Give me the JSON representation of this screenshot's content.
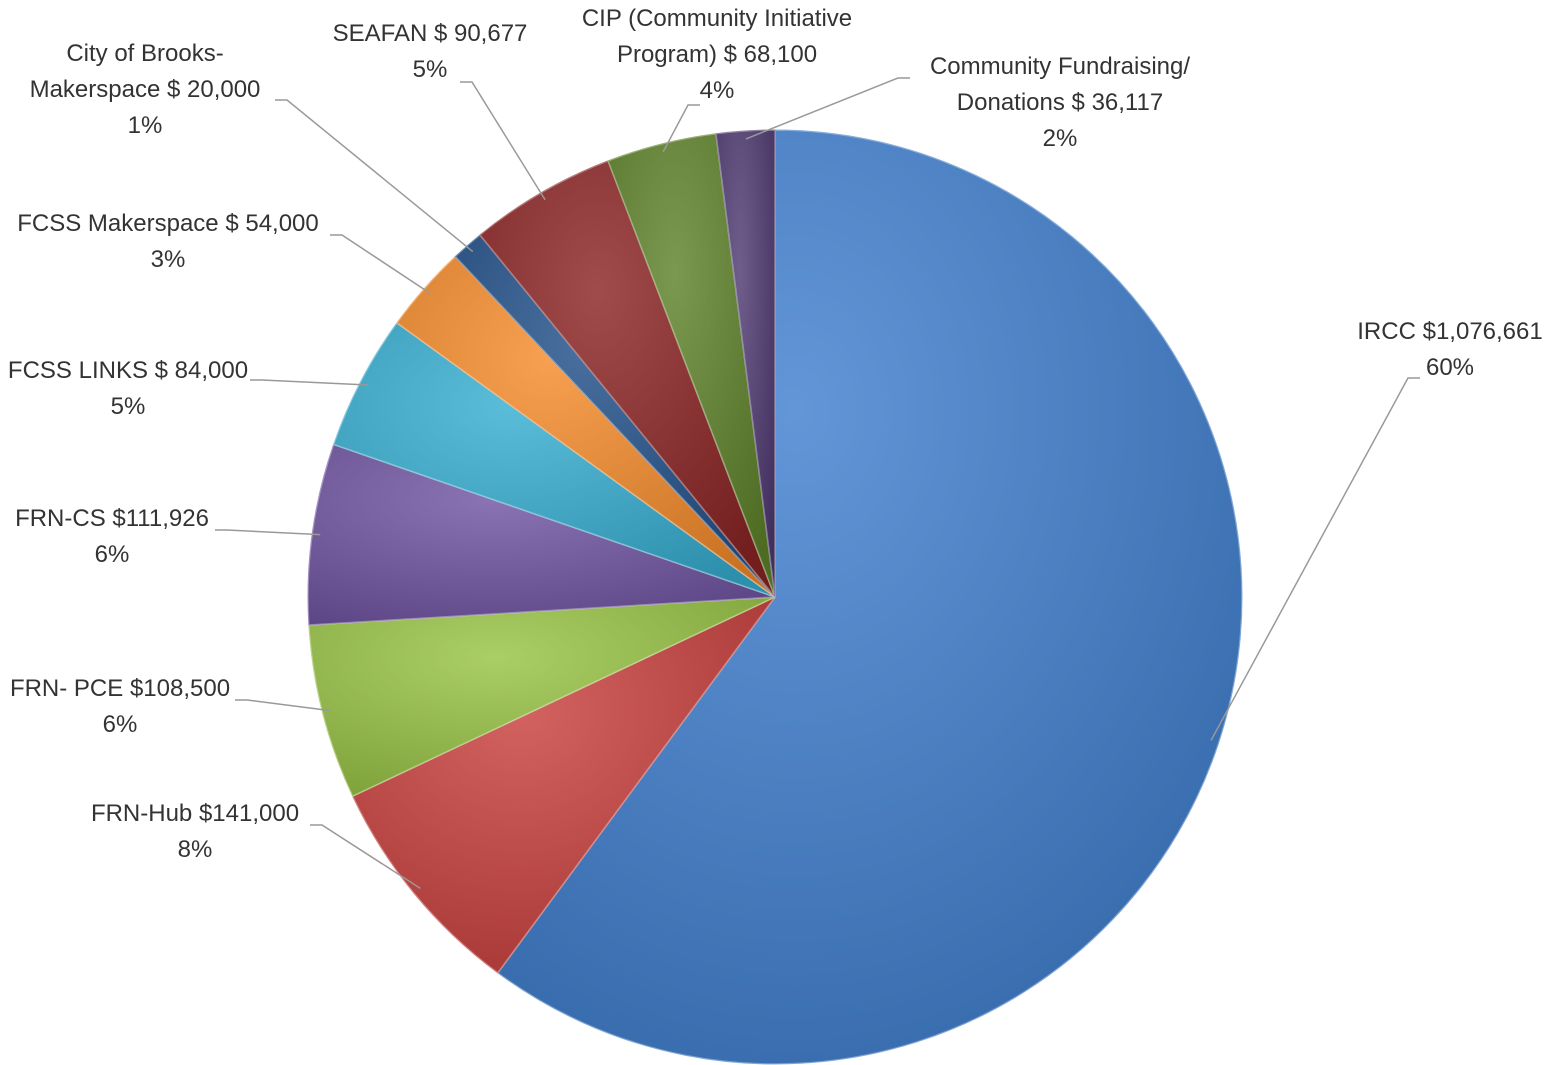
{
  "chart_data": {
    "type": "pie",
    "categories": [
      "IRCC ",
      "FRN-Hub",
      "FRN- PCE",
      "FRN-CS",
      "FCSS LINKS",
      "FCSS Makerspace",
      "City of Brooks-\nMakerspace",
      "SEAFAN",
      "CIP (Community Initiative\nProgram)",
      "Community Fundraising/\nDonations"
    ],
    "values": [
      1076661,
      141000,
      108500,
      111926,
      84000,
      54000,
      20000,
      90677,
      68100,
      36117
    ],
    "value_labels": [
      "$1,076,661",
      "$141,000",
      "$108,500",
      "$111,926",
      "$ 84,000",
      "$ 54,000",
      "$ 20,000",
      "$ 90,677",
      "$ 68,100",
      "$ 36,117"
    ],
    "percents": [
      60,
      8,
      6,
      6,
      5,
      3,
      1,
      5,
      4,
      2
    ],
    "percent_labels": [
      "60%",
      "8%",
      "6%",
      "6%",
      "5%",
      "3%",
      "1%",
      "5%",
      "4%",
      "2%"
    ],
    "colors": [
      "#3f7fcf",
      "#c9403d",
      "#98c444",
      "#7155a3",
      "#36aed1",
      "#f58b2a",
      "#21508a",
      "#8c2424",
      "#5e8229",
      "#4f3a72"
    ]
  }
}
